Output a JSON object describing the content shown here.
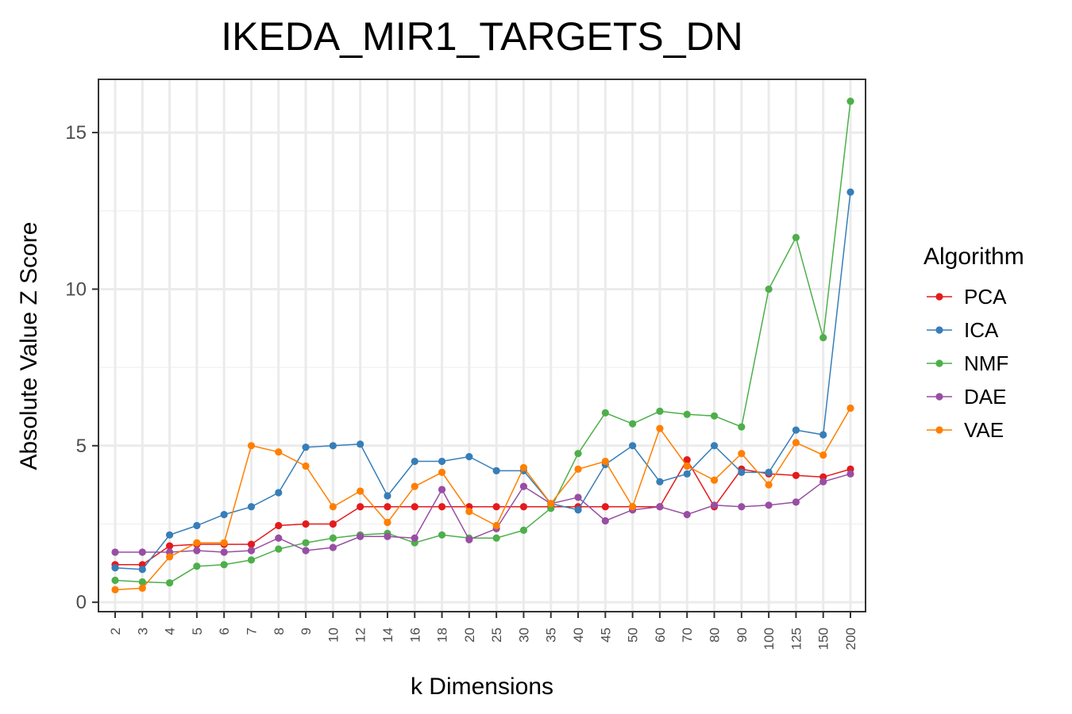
{
  "chart_data": {
    "type": "line",
    "title": "IKEDA_MIR1_TARGETS_DN",
    "xlabel": "k Dimensions",
    "ylabel": "Absolute Value Z Score",
    "categories": [
      "2",
      "3",
      "4",
      "5",
      "6",
      "7",
      "8",
      "9",
      "10",
      "12",
      "14",
      "16",
      "18",
      "20",
      "25",
      "30",
      "35",
      "40",
      "45",
      "50",
      "60",
      "70",
      "80",
      "90",
      "100",
      "125",
      "150",
      "200"
    ],
    "yticks": [
      0,
      5,
      10,
      15
    ],
    "ylim": [
      -0.3,
      16.7
    ],
    "grid": true,
    "legend": {
      "title": "Algorithm",
      "position": "right"
    },
    "series": [
      {
        "name": "PCA",
        "color": "#e41a1c",
        "values": [
          1.2,
          1.2,
          1.8,
          1.85,
          1.85,
          1.85,
          2.45,
          2.5,
          2.5,
          3.05,
          3.05,
          3.05,
          3.05,
          3.05,
          3.05,
          3.05,
          3.05,
          3.05,
          3.05,
          3.05,
          3.05,
          4.55,
          3.05,
          4.25,
          4.1,
          4.05,
          4.0,
          4.25
        ]
      },
      {
        "name": "ICA",
        "color": "#377eb8",
        "values": [
          1.1,
          1.05,
          2.15,
          2.45,
          2.8,
          3.05,
          3.5,
          4.95,
          5.0,
          5.05,
          3.4,
          4.5,
          4.5,
          4.65,
          4.2,
          4.2,
          3.15,
          2.95,
          4.4,
          5.0,
          3.85,
          4.1,
          5.0,
          4.15,
          4.15,
          5.5,
          5.35,
          13.1
        ]
      },
      {
        "name": "NMF",
        "color": "#4daf4a",
        "values": [
          0.7,
          0.65,
          0.62,
          1.15,
          1.2,
          1.35,
          1.7,
          1.9,
          2.05,
          2.15,
          2.2,
          1.9,
          2.15,
          2.05,
          2.05,
          2.3,
          3.0,
          4.75,
          6.05,
          5.7,
          6.1,
          6.0,
          5.95,
          5.6,
          10.0,
          11.65,
          8.45,
          16.0
        ]
      },
      {
        "name": "DAE",
        "color": "#984ea3",
        "values": [
          1.6,
          1.6,
          1.6,
          1.65,
          1.6,
          1.65,
          2.05,
          1.65,
          1.75,
          2.1,
          2.1,
          2.05,
          3.6,
          2.0,
          2.35,
          3.7,
          3.15,
          3.35,
          2.6,
          2.95,
          3.05,
          2.8,
          3.1,
          3.05,
          3.1,
          3.2,
          3.85,
          4.1
        ]
      },
      {
        "name": "VAE",
        "color": "#ff7f00",
        "values": [
          0.4,
          0.45,
          1.45,
          1.9,
          1.9,
          5.0,
          4.8,
          4.35,
          3.05,
          3.55,
          2.55,
          3.7,
          4.15,
          2.9,
          2.45,
          4.3,
          3.15,
          4.25,
          4.5,
          3.05,
          5.55,
          4.35,
          3.9,
          4.75,
          3.75,
          5.1,
          4.7,
          6.2
        ]
      }
    ]
  }
}
